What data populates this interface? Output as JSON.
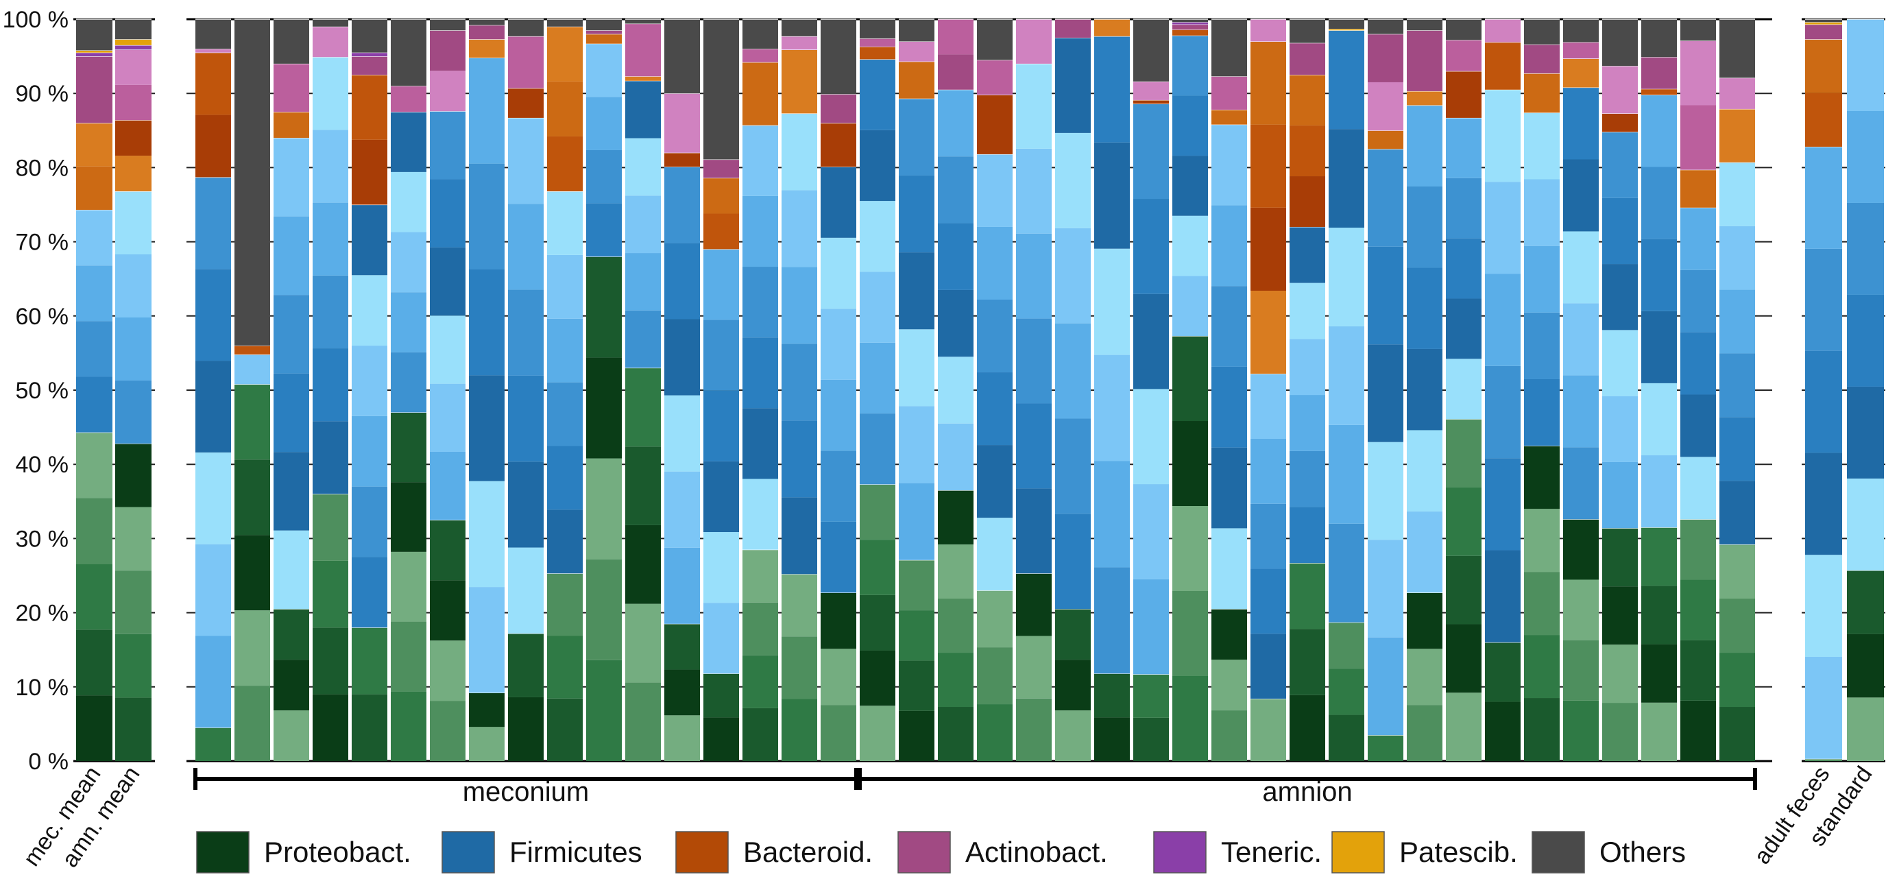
{
  "chart_data": {
    "type": "bar",
    "stacked": true,
    "ylim": [
      0,
      100
    ],
    "yticks": [
      "0 %",
      "10 %",
      "20 %",
      "30 %",
      "40 %",
      "50 %",
      "60 %",
      "70 %",
      "80 %",
      "90 %",
      "100 %"
    ],
    "grid": "horizontal",
    "phyla": [
      "Proteobact.",
      "Firmicutes",
      "Bacteroid.",
      "Actinobact.",
      "Teneric.",
      "Patescib.",
      "Others"
    ],
    "colors": {
      "Proteobact.": "#0a3d17",
      "Firmicutes": "#1f6aa5",
      "Bacteroid.": "#b34a06",
      "Actinobact.": "#a14a83",
      "Teneric.": "#8a3fa8",
      "Patescib.": "#e3a20b",
      "Others": "#4a4a4a"
    },
    "shade_ramps": {
      "Proteobact.": [
        "#0a3d17",
        "#1a5a2d",
        "#2f7a45",
        "#4e8f5e",
        "#74ad80"
      ],
      "Firmicutes": [
        "#1f6aa5",
        "#2a7fc0",
        "#3d92d1",
        "#5aaee8",
        "#7cc6f6",
        "#99e0fb"
      ],
      "Bacteroid.": [
        "#a83d06",
        "#c0550c",
        "#cc6a14",
        "#d97c20"
      ],
      "Actinobact.": [
        "#a14a83",
        "#bb5f9d",
        "#d082c0"
      ],
      "Teneric.": [
        "#8a3fa8"
      ],
      "Patescib.": [
        "#e3a20b"
      ],
      "Others": [
        "#4a4a4a"
      ]
    },
    "means": [
      {
        "label": "mec. mean",
        "values": [
          44.3,
          30.0,
          11.7,
          9.0,
          0.5,
          0.3,
          4.2
        ]
      },
      {
        "label": "amn. mean",
        "values": [
          42.8,
          34.0,
          9.6,
          9.5,
          0.6,
          0.8,
          2.7
        ]
      }
    ],
    "groups": [
      {
        "name": "meconium",
        "samples": [
          {
            "id": "M1",
            "values": [
              4.5,
              74.2,
              16.8,
              0.5,
              0,
              0,
              4.0
            ]
          },
          {
            "id": "M2",
            "values": [
              50.8,
              4.0,
              1.2,
              0,
              0,
              0,
              44.0
            ]
          },
          {
            "id": "M3",
            "values": [
              20.5,
              63.5,
              3.5,
              6.5,
              0,
              0,
              6.0
            ]
          },
          {
            "id": "M4",
            "values": [
              36.0,
              58.9,
              0,
              4.1,
              0,
              0,
              1.0
            ]
          },
          {
            "id": "M5",
            "values": [
              18.0,
              57.0,
              17.5,
              2.5,
              0.5,
              0,
              4.5
            ]
          },
          {
            "id": "M6",
            "values": [
              47.0,
              40.5,
              0,
              3.5,
              0,
              0,
              9.0
            ]
          },
          {
            "id": "M7",
            "values": [
              32.5,
              55.1,
              0,
              10.9,
              0,
              0,
              1.5
            ]
          },
          {
            "id": "M8",
            "values": [
              9.2,
              85.6,
              2.5,
              1.9,
              0,
              0,
              0.8
            ]
          },
          {
            "id": "M9",
            "values": [
              17.2,
              69.5,
              4.0,
              7.0,
              0,
              0,
              2.3
            ]
          },
          {
            "id": "M10",
            "values": [
              25.3,
              51.5,
              22.2,
              0,
              0,
              0,
              1.0
            ]
          },
          {
            "id": "M11",
            "values": [
              68.0,
              28.7,
              1.3,
              0.5,
              0,
              0,
              1.5
            ]
          },
          {
            "id": "M12",
            "values": [
              53.0,
              38.7,
              0.6,
              7.1,
              0,
              0,
              0.6
            ]
          },
          {
            "id": "M13",
            "values": [
              18.5,
              61.6,
              1.9,
              8.0,
              0,
              0,
              10.0
            ]
          },
          {
            "id": "M14",
            "values": [
              11.8,
              57.2,
              9.6,
              2.5,
              0,
              0,
              18.9
            ]
          },
          {
            "id": "M15",
            "values": [
              28.5,
              57.2,
              8.5,
              1.8,
              0,
              0,
              4.0
            ]
          },
          {
            "id": "M16",
            "values": [
              25.2,
              62.1,
              8.6,
              1.8,
              0,
              0,
              2.3
            ]
          },
          {
            "id": "M17",
            "values": [
              22.7,
              57.4,
              5.9,
              3.9,
              0,
              0,
              10.1
            ]
          }
        ]
      },
      {
        "name": "amnion",
        "samples": [
          {
            "id": "A1",
            "values": [
              37.3,
              57.3,
              1.7,
              1.1,
              0,
              0,
              2.6
            ]
          },
          {
            "id": "A2",
            "values": [
              27.1,
              62.2,
              5.0,
              2.7,
              0,
              0,
              3.0
            ]
          },
          {
            "id": "A3",
            "values": [
              36.5,
              54.0,
              0,
              9.5,
              0,
              0,
              0
            ]
          },
          {
            "id": "A4",
            "values": [
              23.0,
              58.8,
              8.0,
              4.7,
              0,
              0,
              5.5
            ]
          },
          {
            "id": "A5",
            "values": [
              25.3,
              68.7,
              0,
              6.0,
              0,
              0,
              0
            ]
          },
          {
            "id": "A6",
            "values": [
              20.5,
              77.0,
              0,
              2.5,
              0,
              0,
              0
            ]
          },
          {
            "id": "A7",
            "values": [
              11.8,
              85.9,
              2.3,
              0,
              0,
              0,
              0
            ]
          },
          {
            "id": "A8",
            "values": [
              11.7,
              76.9,
              0.5,
              2.5,
              0,
              0,
              8.4
            ]
          },
          {
            "id": "A9",
            "values": [
              57.3,
              40.5,
              0.8,
              0.7,
              0.3,
              0,
              0.4
            ]
          },
          {
            "id": "A10",
            "values": [
              20.5,
              65.3,
              2.0,
              4.5,
              0,
              0,
              7.7
            ]
          },
          {
            "id": "A11",
            "values": [
              8.4,
              43.8,
              44.8,
              3.0,
              0,
              0,
              0
            ]
          },
          {
            "id": "A12",
            "values": [
              26.7,
              45.3,
              20.5,
              4.3,
              0,
              0,
              3.2
            ]
          },
          {
            "id": "A13",
            "values": [
              18.7,
              79.8,
              0,
              0,
              0,
              0.2,
              1.3
            ]
          },
          {
            "id": "A14",
            "values": [
              3.5,
              79.0,
              2.5,
              13.0,
              0,
              0,
              2.0
            ]
          },
          {
            "id": "A15",
            "values": [
              22.7,
              65.7,
              1.9,
              8.2,
              0,
              0,
              1.5
            ]
          },
          {
            "id": "A16",
            "values": [
              46.1,
              40.6,
              6.3,
              4.2,
              0,
              0,
              2.8
            ]
          },
          {
            "id": "A17",
            "values": [
              16.0,
              74.5,
              6.4,
              3.1,
              0,
              0,
              0
            ]
          },
          {
            "id": "A18",
            "values": [
              42.5,
              44.9,
              5.3,
              3.9,
              0,
              0,
              3.4
            ]
          },
          {
            "id": "A19",
            "values": [
              32.6,
              58.2,
              3.9,
              2.2,
              0,
              0,
              3.1
            ]
          },
          {
            "id": "A20",
            "values": [
              31.4,
              53.4,
              2.5,
              6.4,
              0,
              0,
              6.3
            ]
          },
          {
            "id": "A21",
            "values": [
              31.5,
              58.3,
              0.8,
              4.3,
              0,
              0,
              5.1
            ]
          },
          {
            "id": "A22",
            "values": [
              32.6,
              42.0,
              5.1,
              17.4,
              0,
              0,
              2.9
            ]
          },
          {
            "id": "A23",
            "values": [
              29.2,
              51.5,
              7.2,
              4.2,
              0,
              0,
              7.9
            ]
          }
        ]
      }
    ],
    "references": [
      {
        "label": "adult feces",
        "values": [
          0.3,
          82.5,
          14.5,
          2.0,
          0,
          0.3,
          0.4
        ]
      },
      {
        "label": "standard",
        "values": [
          25.7,
          74.3,
          0,
          0,
          0,
          0,
          0
        ]
      }
    ]
  }
}
